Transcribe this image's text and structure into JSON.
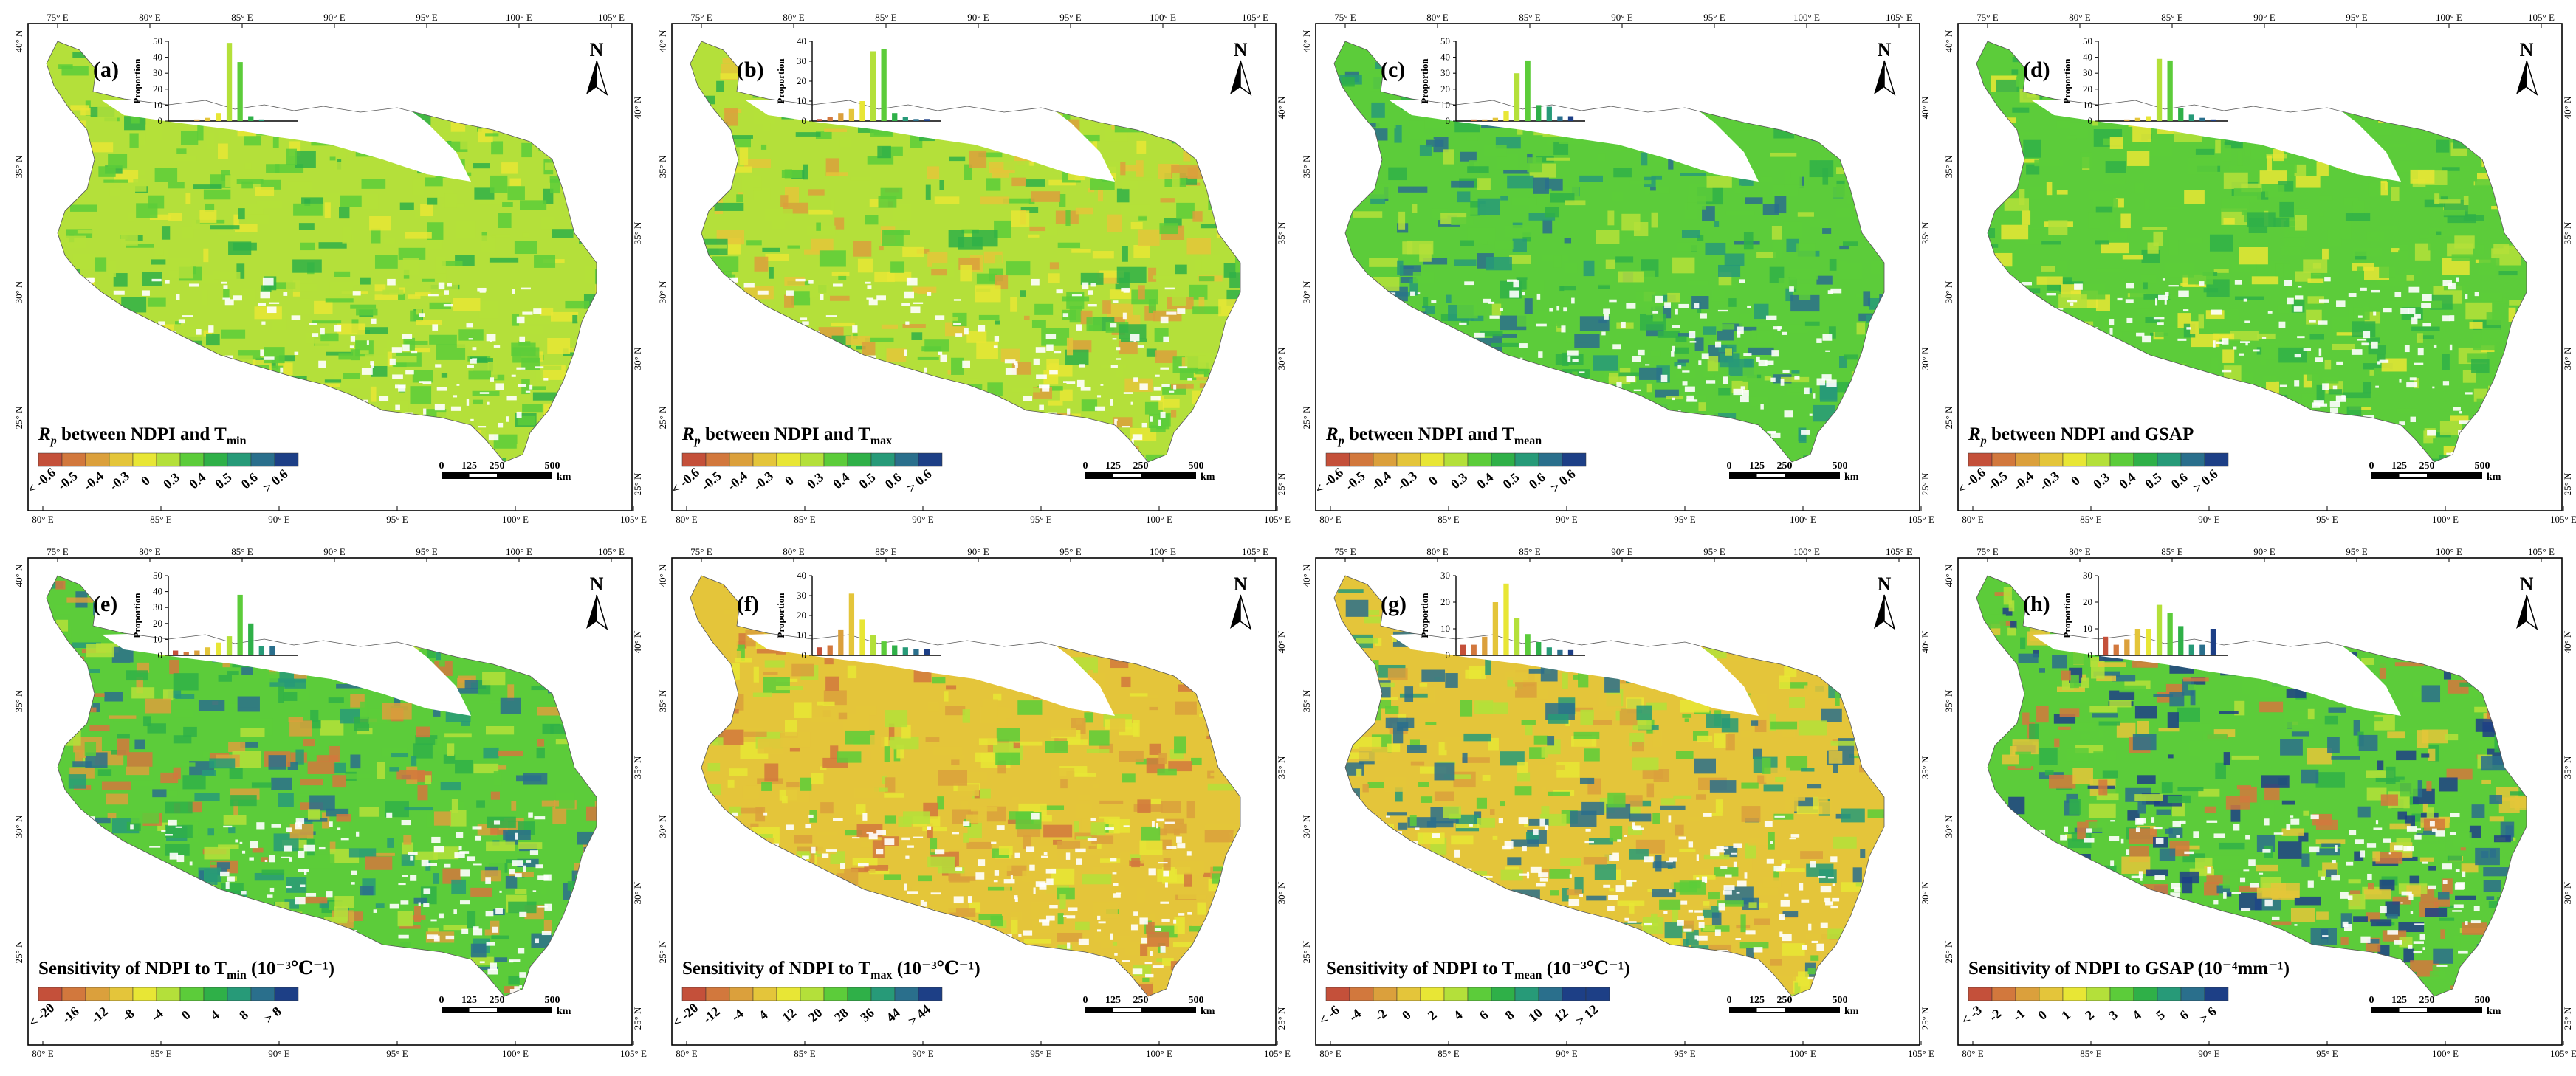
{
  "lon_ticks_top": [
    "75° E",
    "80° E",
    "85° E",
    "90° E",
    "95° E",
    "100° E",
    "105° E"
  ],
  "lon_ticks_bottom": [
    "80° E",
    "85° E",
    "90° E",
    "95° E",
    "100° E",
    "105° E"
  ],
  "lat_ticks_left": [
    "40° N",
    "35° N",
    "30° N",
    "25° N"
  ],
  "lat_ticks_right": [
    "40° N",
    "35° N",
    "30° N",
    "25° N"
  ],
  "north_label": "N",
  "histogram_ylabel": "Proportion",
  "scalebar": {
    "labels": [
      "0",
      "125",
      "250",
      "500"
    ],
    "unit": "km"
  },
  "panels": [
    {
      "label": "(a)",
      "title": {
        "pre": "R",
        "sub1": "p",
        "mid": " between NDPI and T",
        "sub2": "min",
        "post": ""
      },
      "legend_colors": [
        "#c4503a",
        "#d2783d",
        "#dba03c",
        "#e4c53a",
        "#e8e635",
        "#b4e03a",
        "#5ccc3a",
        "#2fb048",
        "#279a78",
        "#2a6f8c",
        "#1d3f86"
      ],
      "legend_labels": [
        "< -0.6",
        "-0.5",
        "-0.4",
        "-0.3",
        "0",
        "0.3",
        "0.4",
        "0.5",
        "0.6",
        "> 0.6"
      ],
      "hist": {
        "ymax": 50,
        "ticks": [
          "0",
          "10",
          "20",
          "30",
          "40",
          "50"
        ],
        "values": [
          0,
          0,
          1,
          2,
          5,
          49,
          37,
          3,
          1,
          0,
          0
        ]
      }
    },
    {
      "label": "(b)",
      "title": {
        "pre": "R",
        "sub1": "p",
        "mid": " between NDPI and T",
        "sub2": "max",
        "post": ""
      },
      "legend_colors": [
        "#c4503a",
        "#d2783d",
        "#dba03c",
        "#e4c53a",
        "#e8e635",
        "#b4e03a",
        "#5ccc3a",
        "#2fb048",
        "#279a78",
        "#2a6f8c",
        "#1d3f86"
      ],
      "legend_labels": [
        "< -0.6",
        "-0.5",
        "-0.4",
        "-0.3",
        "0",
        "0.3",
        "0.4",
        "0.5",
        "0.6",
        "> 0.6"
      ],
      "hist": {
        "ymax": 40,
        "ticks": [
          "0",
          "10",
          "20",
          "30",
          "40"
        ],
        "values": [
          1,
          2,
          4,
          6,
          10,
          35,
          36,
          4,
          2,
          1,
          1
        ]
      }
    },
    {
      "label": "(c)",
      "title": {
        "pre": "R",
        "sub1": "p",
        "mid": " between NDPI and T",
        "sub2": "mean",
        "post": ""
      },
      "legend_colors": [
        "#c4503a",
        "#d2783d",
        "#dba03c",
        "#e4c53a",
        "#e8e635",
        "#b4e03a",
        "#5ccc3a",
        "#2fb048",
        "#279a78",
        "#2a6f8c",
        "#1d3f86"
      ],
      "legend_labels": [
        "< -0.6",
        "-0.5",
        "-0.4",
        "-0.3",
        "0",
        "0.3",
        "0.4",
        "0.5",
        "0.6",
        "> 0.6"
      ],
      "hist": {
        "ymax": 50,
        "ticks": [
          "0",
          "10",
          "20",
          "30",
          "40",
          "50"
        ],
        "values": [
          0,
          1,
          1,
          2,
          6,
          30,
          38,
          10,
          9,
          3,
          3
        ]
      }
    },
    {
      "label": "(d)",
      "title": {
        "pre": "R",
        "sub1": "p",
        "mid": " between NDPI and GSAP",
        "sub2": "",
        "post": ""
      },
      "legend_colors": [
        "#c4503a",
        "#d2783d",
        "#dba03c",
        "#e4c53a",
        "#e8e635",
        "#b4e03a",
        "#5ccc3a",
        "#2fb048",
        "#279a78",
        "#2a6f8c",
        "#1d3f86"
      ],
      "legend_labels": [
        "< -0.6",
        "-0.5",
        "-0.4",
        "-0.3",
        "0",
        "0.3",
        "0.4",
        "0.5",
        "0.6",
        "> 0.6"
      ],
      "hist": {
        "ymax": 50,
        "ticks": [
          "0",
          "10",
          "20",
          "30",
          "40",
          "50"
        ],
        "values": [
          0,
          0,
          1,
          2,
          3,
          39,
          38,
          8,
          4,
          2,
          1
        ]
      }
    },
    {
      "label": "(e)",
      "title": {
        "pre": "",
        "sub1": "",
        "mid": "Sensitivity of NDPI to T",
        "sub2": "min",
        "post": " (10⁻³℃⁻¹)"
      },
      "legend_colors": [
        "#c4503a",
        "#d2783d",
        "#dba03c",
        "#e4c53a",
        "#e8e635",
        "#b4e03a",
        "#5ccc3a",
        "#2fb048",
        "#279a78",
        "#2a6f8c",
        "#1d3f86"
      ],
      "legend_labels": [
        "< -20",
        "-16",
        "-12",
        "-8",
        "-4",
        "0",
        "4",
        "8",
        "> 8"
      ],
      "hist": {
        "ymax": 50,
        "ticks": [
          "0",
          "10",
          "20",
          "30",
          "40",
          "50"
        ],
        "values": [
          3,
          2,
          3,
          5,
          8,
          12,
          38,
          20,
          6,
          6,
          0
        ]
      }
    },
    {
      "label": "(f)",
      "title": {
        "pre": "",
        "sub1": "",
        "mid": "Sensitivity of NDPI to T",
        "sub2": "max",
        "post": " (10⁻³℃⁻¹)"
      },
      "legend_colors": [
        "#c4503a",
        "#d2783d",
        "#dba03c",
        "#e4c53a",
        "#e8e635",
        "#b4e03a",
        "#5ccc3a",
        "#2fb048",
        "#279a78",
        "#2a6f8c",
        "#1d3f86"
      ],
      "legend_labels": [
        "< -20",
        "-12",
        "-4",
        "4",
        "12",
        "20",
        "28",
        "36",
        "44",
        "> 44"
      ],
      "hist": {
        "ymax": 40,
        "ticks": [
          "0",
          "10",
          "20",
          "30",
          "40"
        ],
        "values": [
          4,
          5,
          13,
          31,
          18,
          10,
          7,
          5,
          4,
          3,
          3
        ]
      }
    },
    {
      "label": "(g)",
      "title": {
        "pre": "",
        "sub1": "",
        "mid": "Sensitivity of NDPI to T",
        "sub2": "mean",
        "post": " (10⁻³℃⁻¹)"
      },
      "legend_colors": [
        "#c4503a",
        "#d2783d",
        "#dba03c",
        "#e4c53a",
        "#e8e635",
        "#b4e03a",
        "#5ccc3a",
        "#2fb048",
        "#279a78",
        "#2a6f8c",
        "#1d3f86",
        "#1d3f86"
      ],
      "legend_labels": [
        "< -6",
        "-4",
        "-2",
        "0",
        "2",
        "4",
        "6",
        "8",
        "10",
        "12",
        "> 12"
      ],
      "hist": {
        "ymax": 30,
        "ticks": [
          "0",
          "10",
          "20",
          "30"
        ],
        "values": [
          4,
          4,
          7,
          20,
          27,
          14,
          8,
          5,
          3,
          2,
          2
        ]
      }
    },
    {
      "label": "(h)",
      "title": {
        "pre": "",
        "sub1": "",
        "mid": "Sensitivity of NDPI to GSAP",
        "sub2": "",
        "post": " (10⁻⁴mm⁻¹)"
      },
      "legend_colors": [
        "#c4503a",
        "#d2783d",
        "#dba03c",
        "#e4c53a",
        "#e8e635",
        "#b4e03a",
        "#5ccc3a",
        "#2fb048",
        "#279a78",
        "#2a6f8c",
        "#1d3f86"
      ],
      "legend_labels": [
        "< -3",
        "-2",
        "-1",
        "0",
        "1",
        "2",
        "3",
        "4",
        "5",
        "6",
        "> 6"
      ],
      "hist": {
        "ymax": 30,
        "ticks": [
          "0",
          "10",
          "20",
          "30"
        ],
        "values": [
          7,
          4,
          6,
          10,
          10,
          19,
          16,
          11,
          4,
          4,
          10
        ]
      }
    }
  ]
}
